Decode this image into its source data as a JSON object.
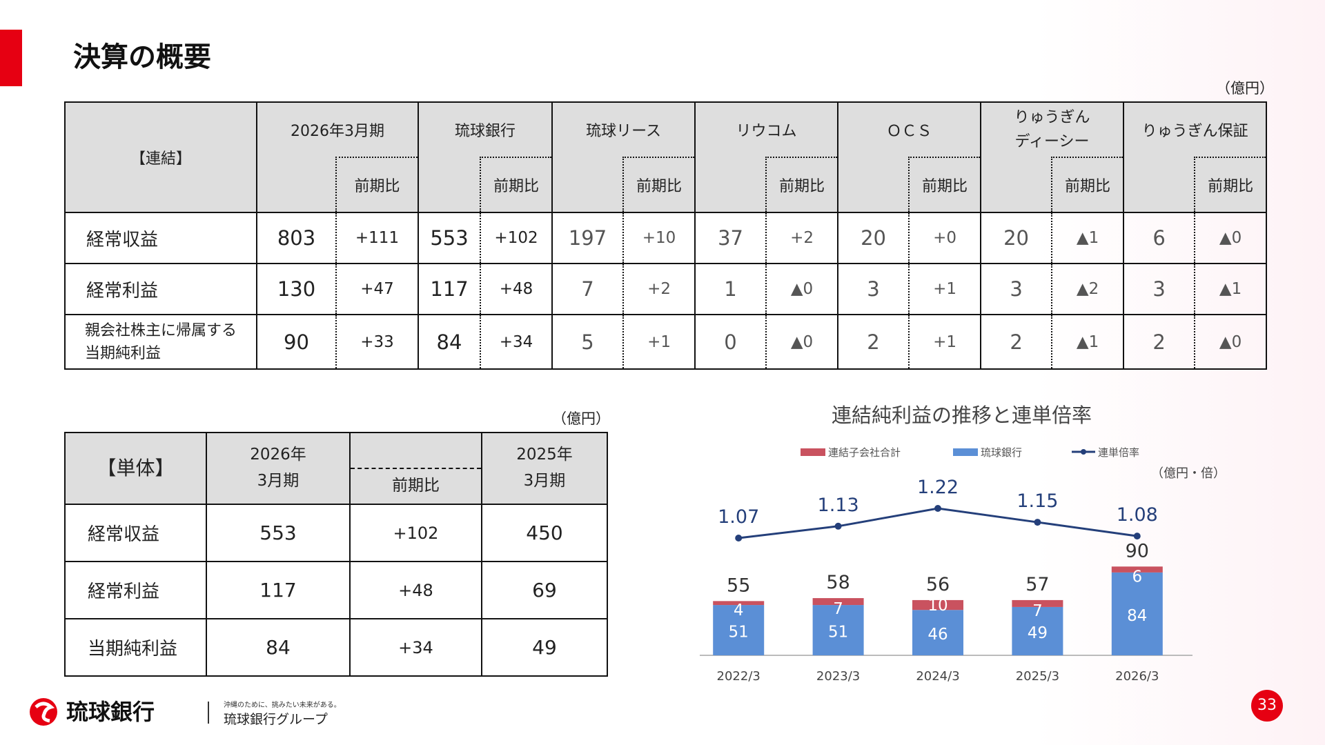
{
  "title": "決算の概要",
  "unit_label": "（億円）",
  "consolidated": {
    "label": "【連結】",
    "sub_label": "前期比",
    "columns": [
      "2026年3月期",
      "琉球銀行",
      "琉球リース",
      "リウコム",
      "ＯＣＳ",
      "りゅうぎん\nディーシー",
      "りゅうぎん保証"
    ],
    "rows": [
      {
        "label": "経常収益",
        "values": [
          "803",
          "+111",
          "553",
          "+102",
          "197",
          "+10",
          "37",
          "+2",
          "20",
          "+0",
          "20",
          "▲1",
          "6",
          "▲0"
        ]
      },
      {
        "label": "経常利益",
        "values": [
          "130",
          "+47",
          "117",
          "+48",
          "7",
          "+2",
          "1",
          "▲0",
          "3",
          "+1",
          "3",
          "▲2",
          "3",
          "▲1"
        ]
      },
      {
        "label": "親会社株主に帰属する\n当期純利益",
        "values": [
          "90",
          "+33",
          "84",
          "+34",
          "5",
          "+1",
          "0",
          "▲0",
          "2",
          "+1",
          "2",
          "▲1",
          "2",
          "▲0"
        ]
      }
    ]
  },
  "standalone": {
    "label": "【単体】",
    "col1": "2026年\n3月期",
    "col2": "前期比",
    "col3": "2025年\n3月期",
    "rows": [
      {
        "label": "経常収益",
        "values": [
          "553",
          "+102",
          "450"
        ]
      },
      {
        "label": "経常利益",
        "values": [
          "117",
          "+48",
          "69"
        ]
      },
      {
        "label": "当期純利益",
        "values": [
          "84",
          "+34",
          "49"
        ]
      }
    ]
  },
  "chart_data": {
    "type": "bar",
    "title": "連結純利益の推移と連単倍率",
    "unit": "（億円・倍）",
    "categories": [
      "2022/3",
      "2023/3",
      "2024/3",
      "2025/3",
      "2026/3"
    ],
    "series": [
      {
        "name": "琉球銀行",
        "values": [
          51,
          51,
          46,
          49,
          84
        ],
        "color": "#5b8fd6"
      },
      {
        "name": "連結子会社合計",
        "values": [
          4,
          7,
          10,
          7,
          6
        ],
        "color": "#c9525f"
      }
    ],
    "totals": [
      55,
      58,
      56,
      57,
      90
    ],
    "line": {
      "name": "連単倍率",
      "values": [
        1.07,
        1.13,
        1.22,
        1.15,
        1.08
      ],
      "color": "#243f7a"
    }
  },
  "footer": {
    "bank_name": "琉球銀行",
    "tagline": "沖縄のために、挑みたい未来がある。",
    "group_name": "琉球銀行グループ"
  },
  "page_number": "33",
  "colors": {
    "accent": "#e60012",
    "header_bg": "#dedede"
  }
}
